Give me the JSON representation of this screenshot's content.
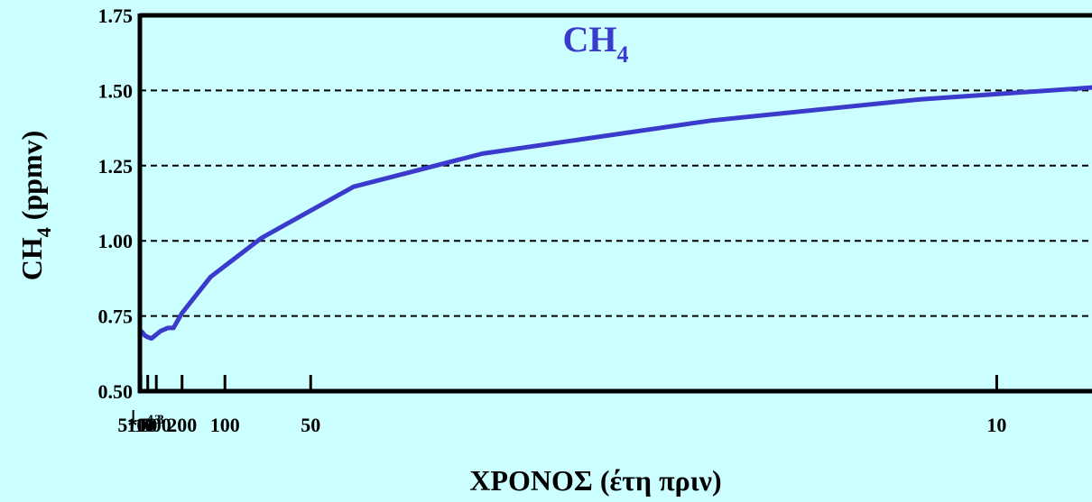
{
  "colors": {
    "background": "#ccffff",
    "axis": "#000000",
    "series": "#3a3acc"
  },
  "chart_data": {
    "type": "line",
    "title": {
      "main": "CH",
      "sub": "4"
    },
    "ylabel": {
      "main": "CH",
      "sub": "4",
      "rest": " (ppmv)"
    },
    "xlabel": "ΧΡΟΝΟΣ (έτη πριν)",
    "ylim": [
      0.5,
      1.75
    ],
    "yticks": [
      {
        "value": 0.5,
        "label": "0.50"
      },
      {
        "value": 0.75,
        "label": "0.75"
      },
      {
        "value": 1.0,
        "label": "1.00"
      },
      {
        "value": 1.25,
        "label": "1.25"
      },
      {
        "value": 1.5,
        "label": "1.50"
      },
      {
        "value": 1.75,
        "label": "1.75"
      }
    ],
    "gridlines": [
      0.75,
      1.0,
      1.25,
      1.5
    ],
    "x_scale": "reciprocal (years before present)",
    "xlim": [
      12000,
      9
    ],
    "xticks": [
      {
        "value": 10000,
        "label": "10",
        "sup": "4"
      },
      {
        "value": 5000,
        "label": "5*10",
        "sup": "3"
      },
      {
        "value": 1000,
        "label": "10",
        "sup": "3"
      },
      {
        "value": 500,
        "label": "500"
      },
      {
        "value": 200,
        "label": "200"
      },
      {
        "value": 100,
        "label": "100"
      },
      {
        "value": 50,
        "label": "50"
      },
      {
        "value": 10,
        "label": "10"
      }
    ],
    "series": [
      {
        "x": [
          12000,
          6000,
          2500,
          1500,
          1000,
          700,
          400,
          300,
          250,
          200,
          120,
          70,
          40,
          25,
          15,
          11,
          9
        ],
        "values": [
          0.68,
          0.7,
          0.695,
          0.685,
          0.68,
          0.675,
          0.7,
          0.71,
          0.71,
          0.76,
          0.88,
          1.01,
          1.18,
          1.29,
          1.4,
          1.47,
          1.51
        ]
      }
    ]
  }
}
